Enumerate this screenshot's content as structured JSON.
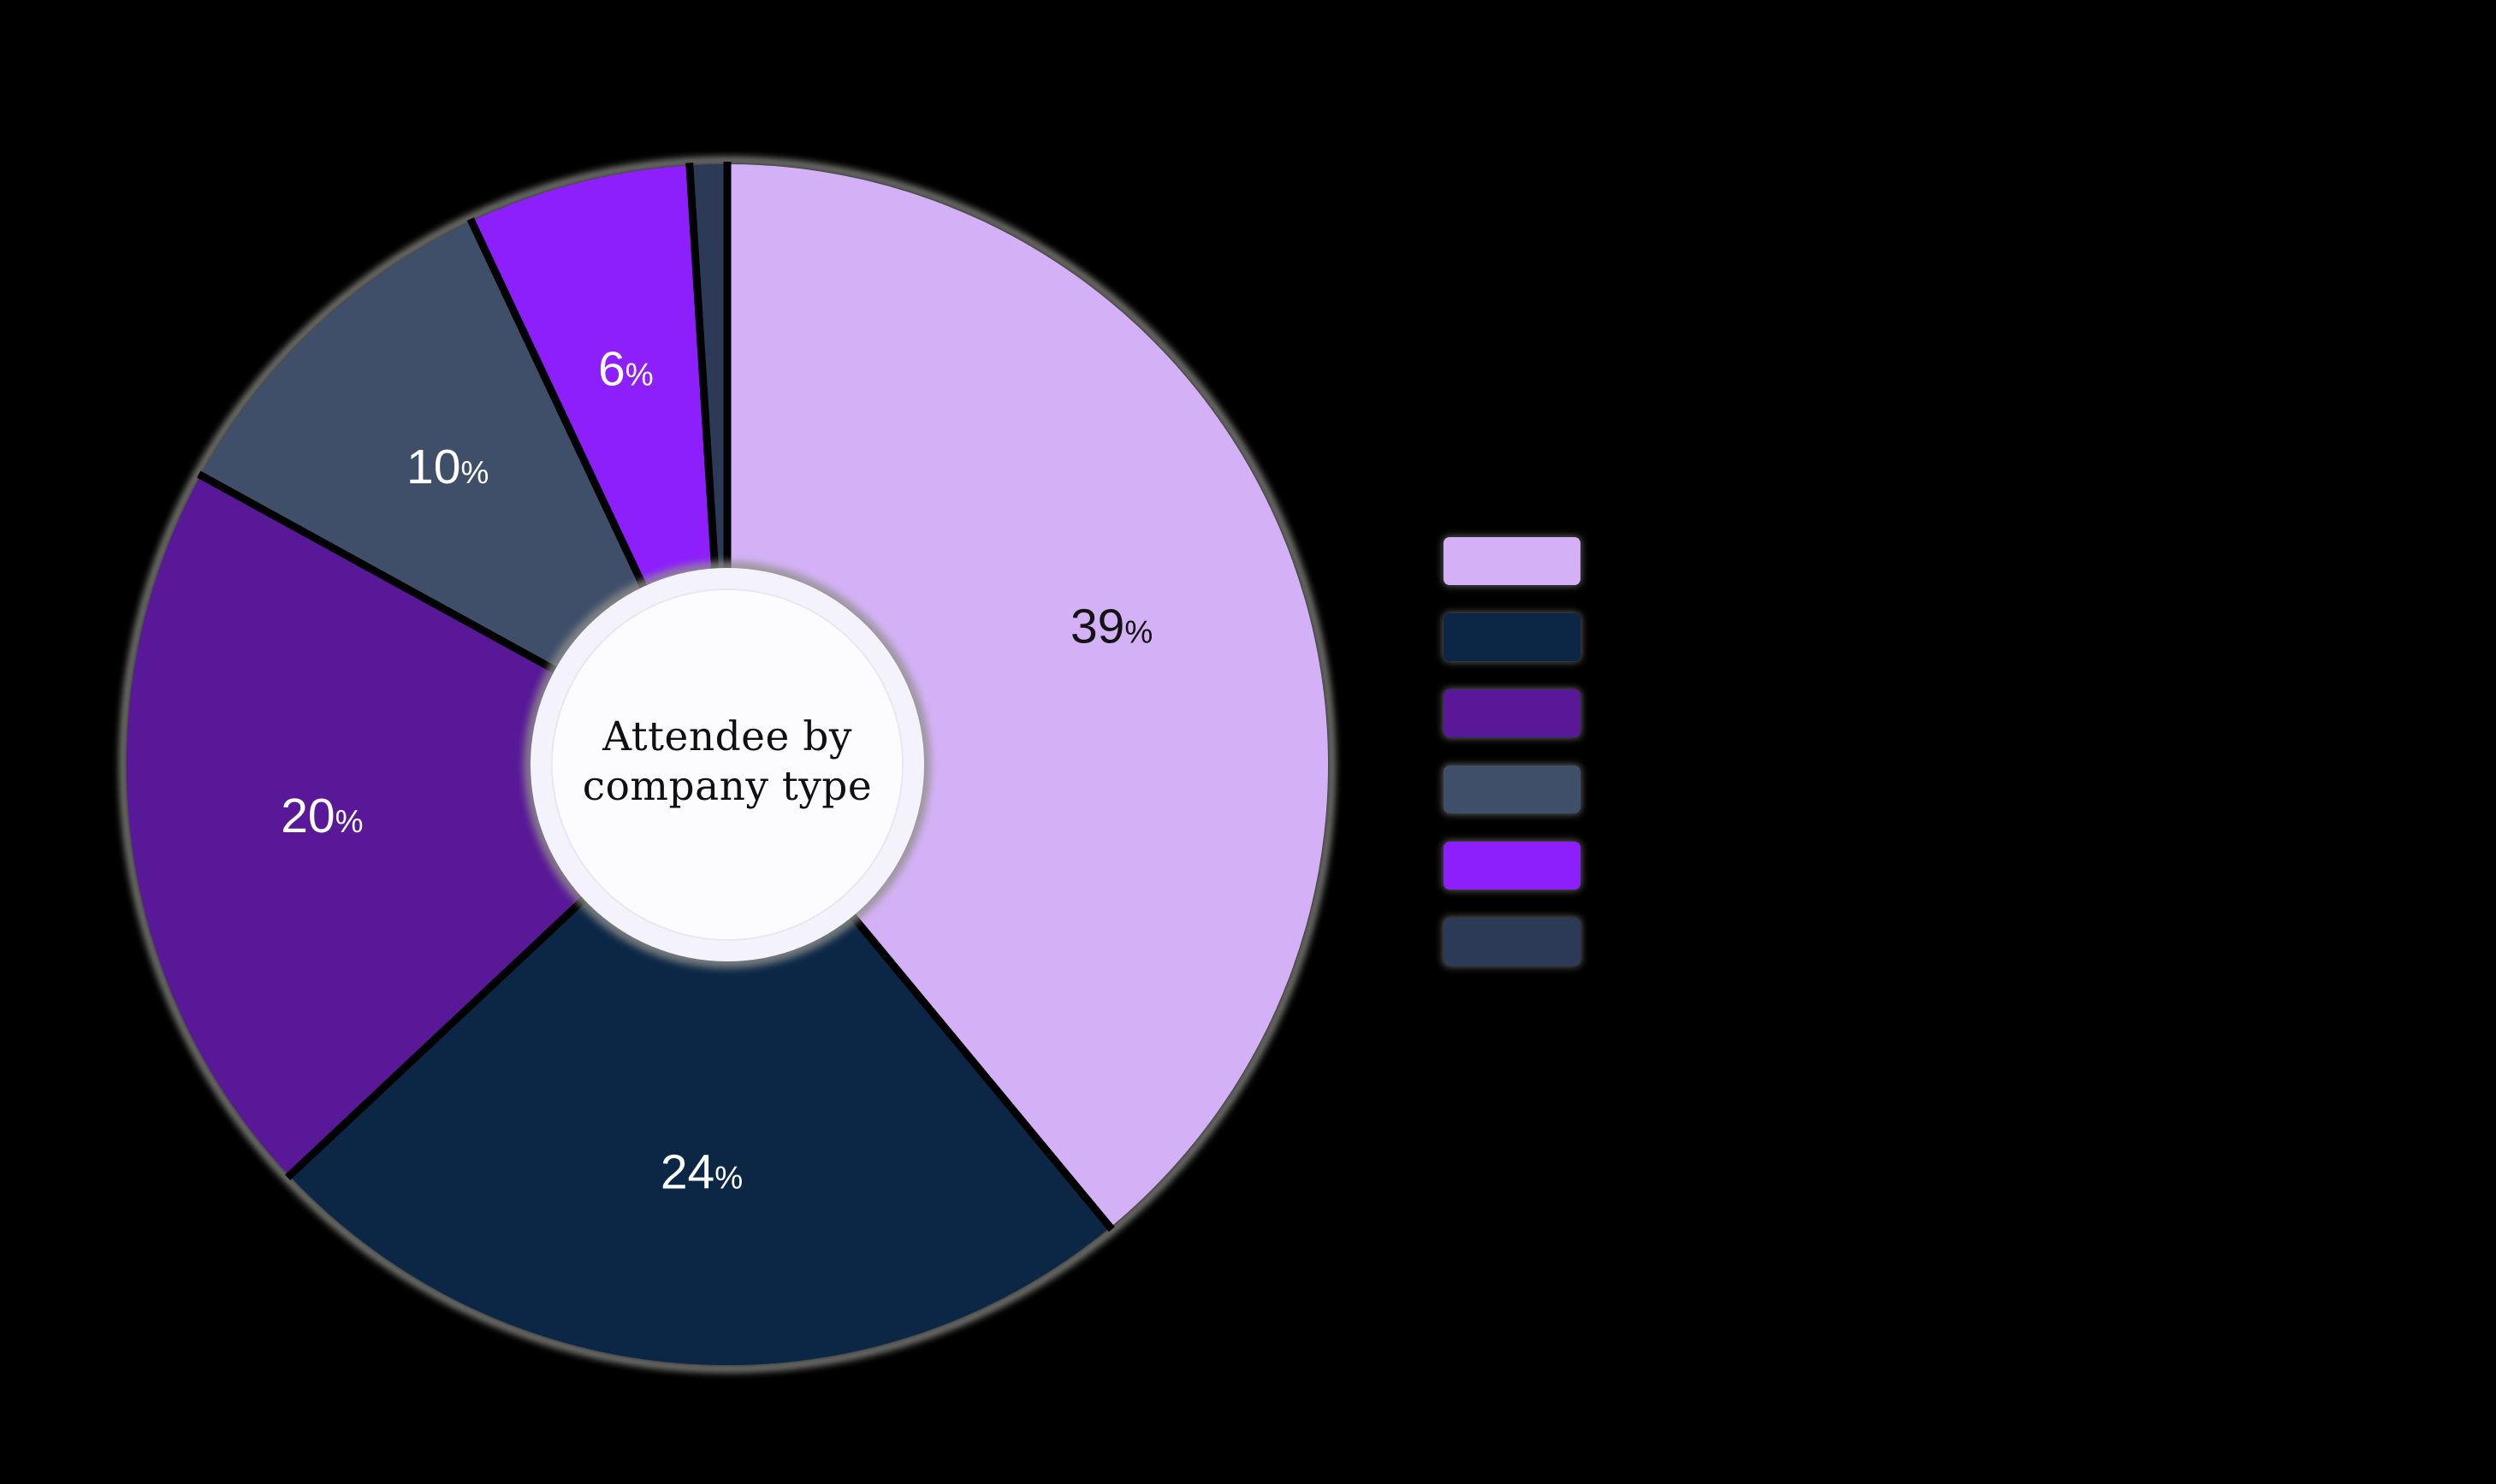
{
  "chart_data": {
    "type": "pie",
    "variant": "donut",
    "title": "Attendee by company type",
    "center_title_lines": [
      "Attendee by",
      "company type"
    ],
    "values": [
      39,
      24,
      20,
      10,
      6,
      1
    ],
    "unit": "%",
    "slice_labels": [
      "39%",
      "24%",
      "20%",
      "10%",
      "6%",
      ""
    ],
    "colors": [
      "#D4B1F6",
      "#0C2745",
      "#581897",
      "#3F4E69",
      "#8C1FFC",
      "#2C3A58"
    ],
    "label_colors": [
      "#131313",
      "#FFFFFF",
      "#FFFFFF",
      "#FFFFFF",
      "#FFFFFF",
      ""
    ],
    "start_angle_deg": 0,
    "direction": "clockwise",
    "grid": false,
    "legend": {
      "position": "right",
      "labels_visible": false,
      "swatch_colors": [
        "#D4B1F6",
        "#0C2745",
        "#581897",
        "#3F4E69",
        "#8C1FFC",
        "#2C3A58"
      ]
    }
  },
  "styles": {
    "background": "#000000",
    "center_ring_fill": "#F4F3FB",
    "center_disc_fill": "#FCFCFF",
    "center_disc_border": "#E8E7F3",
    "gap_line_color": "#000000",
    "outer_shadow_color": "#A6A7A1",
    "title_color": "#101010"
  }
}
